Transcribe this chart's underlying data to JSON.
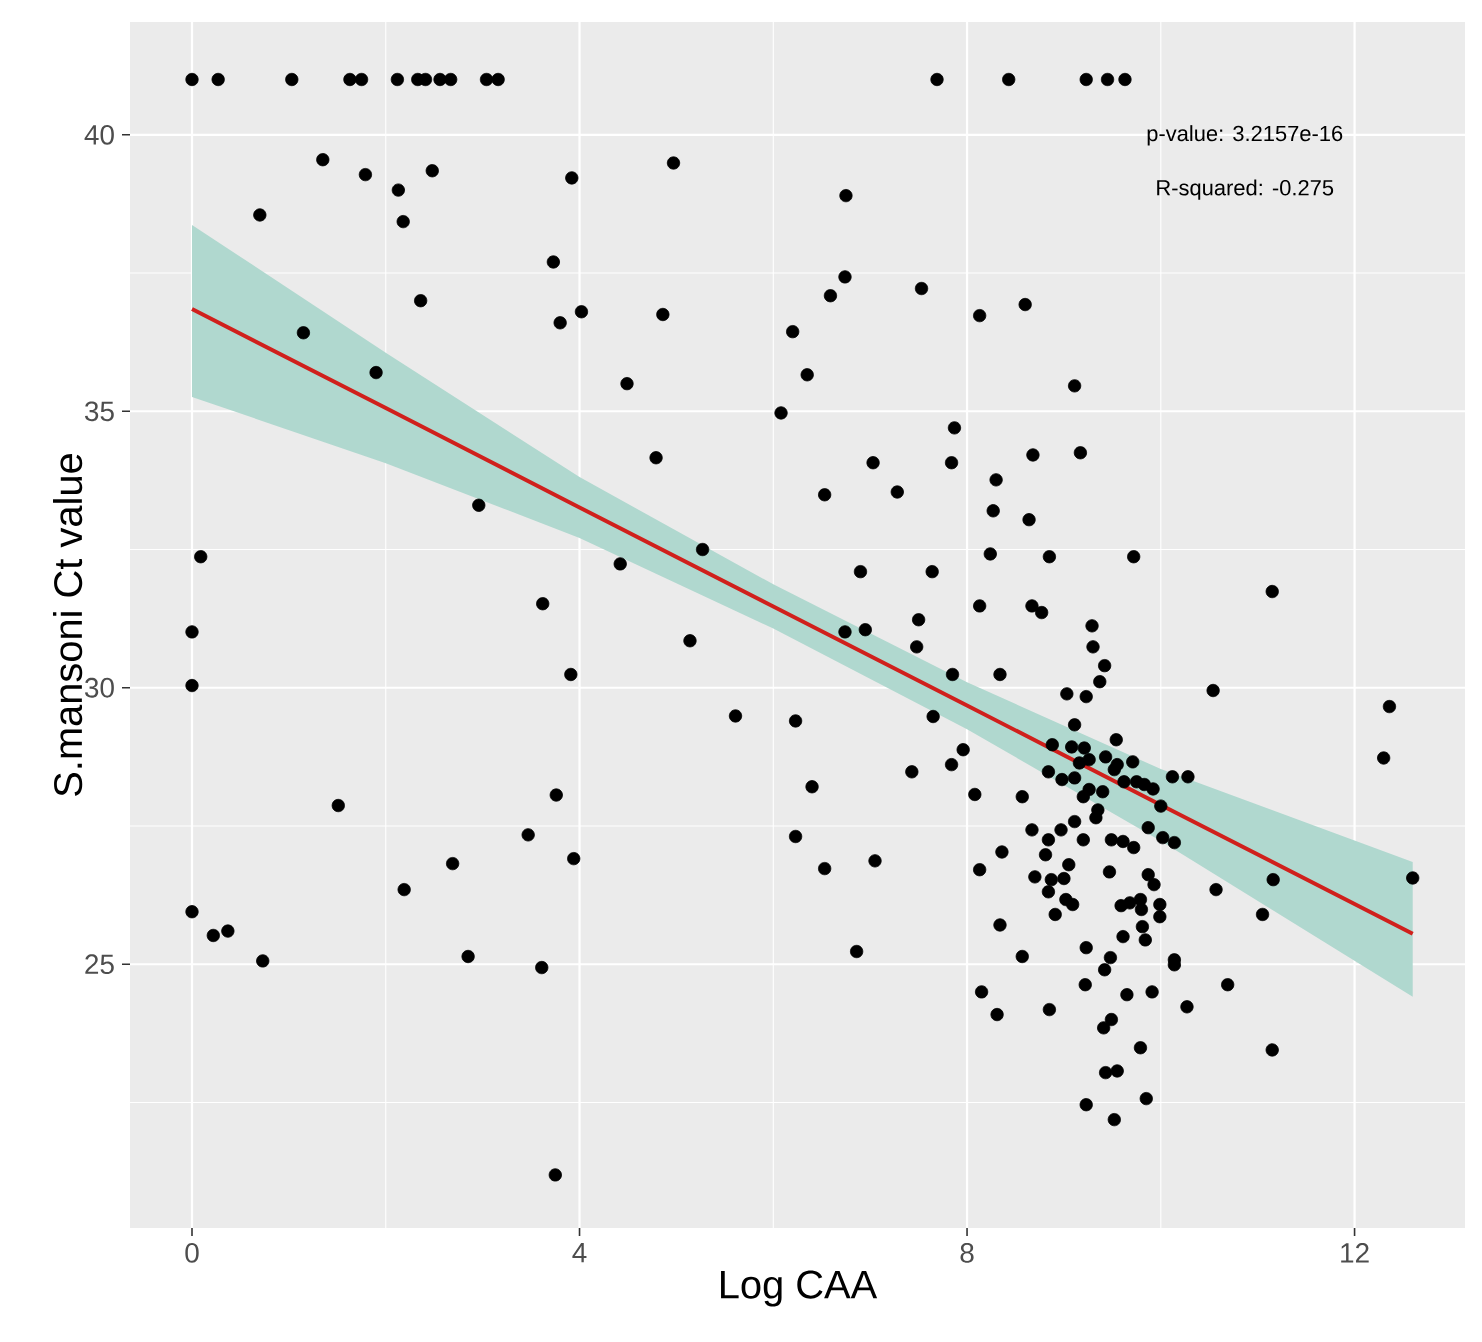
{
  "chart_data": {
    "type": "scatter",
    "xlabel": "Log CAA",
    "ylabel": "S.mansoni Ct value",
    "annotations": [
      "p-value: 3.2157e-16",
      "R-squared: -0.275"
    ],
    "xlim": [
      -0.64,
      13.14
    ],
    "ylim": [
      20.23,
      42.04
    ],
    "xticks": [
      0,
      4,
      8,
      12
    ],
    "yticks": [
      25,
      30,
      35,
      40
    ],
    "grid": true,
    "series": [
      {
        "color": "#000000",
        "x": [
          0,
          0.27,
          1.03,
          1.63,
          1.75,
          2.12,
          2.33,
          2.41,
          2.56,
          2.67,
          3.04,
          3.16,
          7.69,
          8.43,
          9.23,
          9.45,
          9.63,
          1.35,
          1.79,
          2.13,
          2.48,
          2.18,
          0.7,
          3.92,
          4.97,
          6.75,
          2.36,
          1.15,
          1.9,
          3.73,
          3.8,
          4.02,
          4.86,
          4.49,
          4.79,
          2.96,
          4.42,
          5.27,
          0.09,
          0,
          0,
          0,
          0.22,
          0.37,
          0.73,
          1.51,
          2.19,
          2.69,
          2.85,
          3.47,
          3.62,
          3.91,
          3.76,
          3.94,
          3.61,
          3.75,
          5.14,
          5.61,
          6.2,
          6.35,
          6.08,
          6.59,
          6.74,
          6.53,
          7.03,
          7.28,
          6.9,
          7.64,
          7.53,
          8.13,
          7.87,
          7.84,
          6.74,
          6.95,
          7.5,
          7.48,
          7.85,
          7.65,
          7.96,
          7.84,
          7.43,
          8.08,
          6.23,
          6.4,
          6.23,
          6.53,
          7.05,
          6.86,
          8.3,
          8.27,
          8.24,
          8.13,
          8.34,
          8.68,
          8.6,
          8.64,
          8.85,
          8.67,
          8.77,
          9.11,
          9.17,
          9.29,
          9.3,
          9.42,
          9.37,
          9.23,
          9.03,
          9.72,
          10.54,
          11.15,
          12.36,
          12.3,
          12.6,
          11.16,
          11.05,
          11.15,
          10.69,
          10.57,
          10.27,
          9.85,
          9.79,
          9.91,
          9.65,
          9.52,
          9.23,
          9.55,
          9.43,
          9.41,
          9.49,
          9.22,
          9.42,
          9.48,
          9.23,
          9.61,
          9.81,
          8.85,
          8.57,
          8.34,
          8.15,
          8.31,
          8.13,
          8.36,
          8.57,
          8.67,
          8.84,
          8.81,
          8.87,
          8.84,
          8.7,
          8.91,
          9.02,
          9.09,
          9.0,
          9.05,
          8.97,
          9.11,
          9.2,
          9.33,
          9.35,
          9.4,
          9.49,
          9.47,
          9.59,
          9.68,
          9.79,
          9.8,
          9.93,
          9.99,
          9.87,
          9.87,
          9.72,
          9.71,
          9.55,
          9.43,
          9.62,
          9.75,
          9.83,
          9.92,
          10.0,
          10.02,
          10.14,
          10.12,
          10.28,
          9.99,
          9.84,
          10.14,
          10.14,
          9.61,
          9.2,
          9.26,
          9.11,
          9.08,
          9.21,
          8.88,
          8.84,
          9.11,
          9.26,
          9.16,
          8.98,
          9.52,
          9.54
        ],
        "values": [
          41,
          41,
          41,
          41,
          41,
          41,
          41,
          41,
          41,
          41,
          41,
          41,
          41,
          41,
          41,
          41,
          41,
          39.55,
          39.28,
          39.0,
          39.35,
          38.43,
          38.55,
          39.22,
          39.49,
          38.9,
          37.0,
          36.42,
          35.7,
          37.7,
          36.6,
          36.8,
          36.75,
          35.5,
          34.16,
          33.3,
          32.24,
          32.5,
          32.37,
          31.01,
          30.04,
          25.95,
          25.52,
          25.6,
          25.06,
          27.87,
          26.35,
          26.82,
          25.14,
          27.34,
          31.52,
          30.24,
          28.06,
          26.91,
          24.94,
          21.19,
          30.85,
          29.49,
          36.44,
          35.66,
          34.97,
          37.09,
          37.43,
          33.49,
          34.07,
          33.54,
          32.1,
          32.1,
          37.22,
          36.73,
          34.7,
          34.07,
          31.01,
          31.05,
          31.23,
          30.74,
          30.24,
          29.48,
          28.88,
          28.61,
          28.48,
          28.07,
          29.4,
          28.21,
          27.31,
          26.73,
          26.87,
          25.23,
          33.76,
          33.2,
          32.42,
          31.48,
          30.24,
          34.21,
          36.93,
          33.04,
          32.37,
          31.48,
          31.36,
          35.46,
          34.25,
          31.12,
          30.74,
          30.4,
          30.11,
          29.84,
          29.89,
          32.37,
          29.95,
          31.74,
          29.66,
          28.73,
          26.56,
          26.53,
          25.9,
          23.45,
          24.63,
          26.35,
          24.23,
          22.57,
          23.49,
          24.5,
          24.45,
          22.19,
          22.46,
          23.07,
          23.04,
          23.85,
          24.0,
          24.63,
          24.9,
          25.12,
          25.3,
          25.5,
          25.68,
          24.18,
          25.14,
          25.71,
          24.5,
          24.09,
          26.71,
          27.03,
          28.03,
          27.43,
          27.25,
          26.98,
          26.53,
          26.31,
          26.58,
          25.9,
          26.17,
          26.08,
          26.55,
          26.8,
          27.43,
          27.58,
          27.25,
          27.65,
          27.79,
          28.12,
          27.25,
          26.67,
          26.06,
          26.11,
          26.17,
          25.99,
          26.44,
          26.08,
          26.62,
          27.47,
          27.11,
          28.66,
          28.61,
          28.75,
          28.3,
          28.3,
          28.25,
          28.17,
          27.86,
          27.29,
          27.2,
          28.39,
          28.39,
          25.86,
          25.44,
          25.08,
          24.99,
          27.22,
          28.03,
          28.16,
          29.33,
          28.93,
          28.91,
          28.97,
          28.48,
          28.37,
          28.7,
          28.64,
          28.34,
          28.52,
          29.06
        ]
      },
      {
        "type": "line",
        "color": "#d0201c",
        "x": [
          0,
          2,
          4,
          6,
          8,
          10,
          12.6
        ],
        "values": [
          36.85,
          35.06,
          33.26,
          31.47,
          29.68,
          27.88,
          25.55
        ],
        "lower": [
          35.26,
          34.06,
          32.71,
          31.07,
          29.25,
          27.23,
          24.41
        ],
        "upper": [
          38.37,
          36.06,
          33.81,
          31.87,
          30.1,
          28.53,
          26.85
        ]
      }
    ]
  }
}
